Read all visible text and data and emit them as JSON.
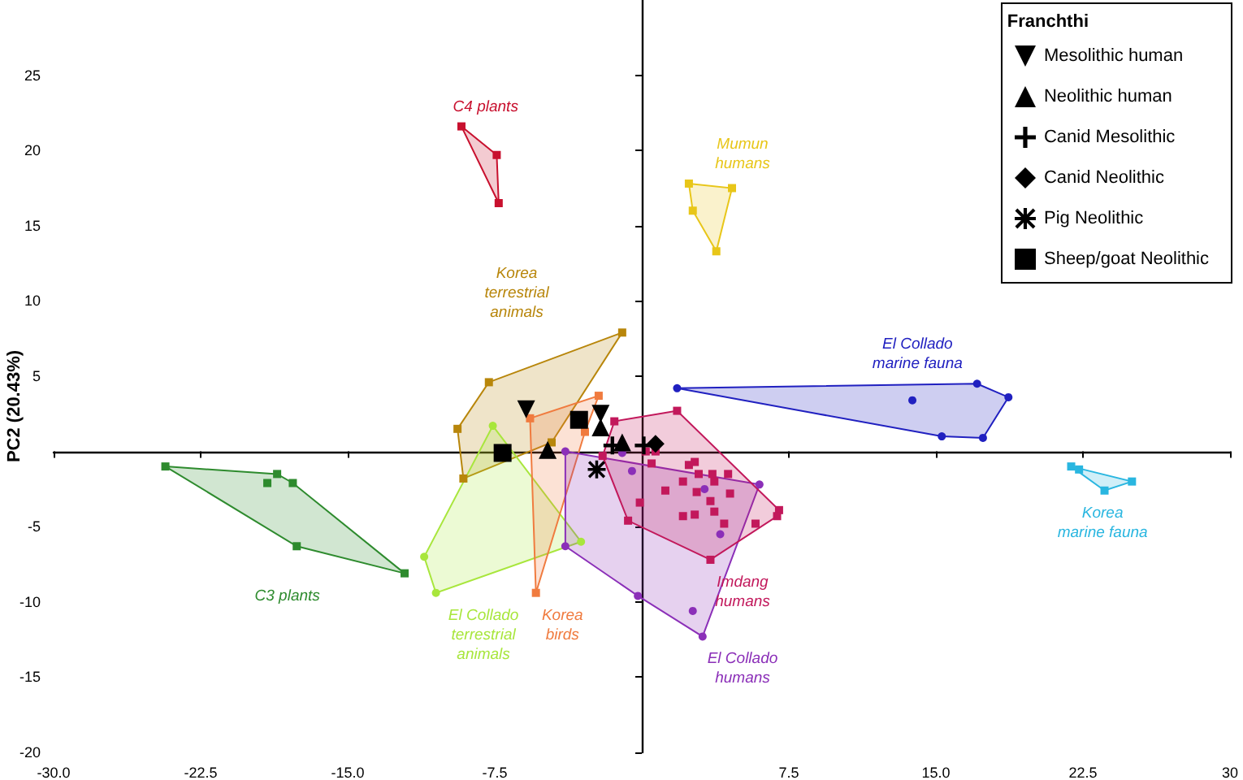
{
  "chart_data": {
    "type": "scatter",
    "ylabel": "PC2 (20.43%)",
    "legend_title": "Franchthi",
    "legend": "top right",
    "xlim": [
      -30,
      30
    ],
    "ylim": [
      -20,
      30
    ],
    "xticks": [
      {
        "value": -30,
        "label": "-30.0"
      },
      {
        "value": -22.5,
        "label": "-22.5"
      },
      {
        "value": -15,
        "label": "-15.0"
      },
      {
        "value": -7.5,
        "label": "-7.5"
      },
      7.5,
      {
        "value": 15,
        "label": "15.0"
      },
      22.5,
      30
    ],
    "yticks": [
      -20,
      -15,
      -10,
      -5,
      5,
      10,
      15,
      20,
      25
    ],
    "series": [
      {
        "type": "area",
        "name": "C4 plants",
        "color": "#c8102e",
        "marker": "square",
        "x": [
          -9.2,
          -7.4,
          -7.3
        ],
        "values": [
          21.6,
          19.7,
          16.5
        ]
      },
      {
        "type": "area",
        "name": "Mumun\nhumans",
        "color": "#e8c619",
        "marker": "square",
        "x": [
          2.4,
          4.6,
          3.8,
          2.6
        ],
        "values": [
          17.8,
          17.5,
          13.3,
          16.0
        ]
      },
      {
        "type": "area",
        "name": "Korea\nterrestrial\nanimals",
        "color": "#b8860b",
        "marker": "square",
        "x": [
          -7.8,
          -1.0,
          -4.6,
          -9.1,
          -9.4
        ],
        "values": [
          4.6,
          7.9,
          0.6,
          -1.8,
          1.5
        ]
      },
      {
        "type": "area",
        "name": "C3 plants",
        "color": "#2e8b2e",
        "marker": "square",
        "x": [
          -24.3,
          -18.6,
          -17.8,
          -12.1,
          -17.6
        ],
        "values": [
          -1.0,
          -1.5,
          -2.1,
          -8.1,
          -6.3
        ]
      },
      {
        "type": "scatter",
        "color": "#2e8b2e",
        "marker": "square",
        "x": [
          -19.1
        ],
        "values": [
          -2.1
        ]
      },
      {
        "type": "area",
        "name": "El Collado\nterrestrial\nanimals",
        "color": "#a8e63c",
        "marker": "circle",
        "x": [
          -7.6,
          -3.1,
          -10.5,
          -11.1
        ],
        "values": [
          1.7,
          -6.0,
          -9.4,
          -7.0
        ]
      },
      {
        "type": "area",
        "name": "Korea\nbirds",
        "color": "#f07b3f",
        "marker": "square",
        "x": [
          -5.7,
          -2.2,
          -2.9,
          -5.4
        ],
        "values": [
          2.2,
          3.7,
          1.3,
          -9.4
        ]
      },
      {
        "type": "area",
        "name": "El Collado\nhumans",
        "color": "#8b2fb8",
        "marker": "circle",
        "x": [
          -3.9,
          6.0,
          3.1,
          -0.2,
          -3.9
        ],
        "values": [
          0.0,
          -2.2,
          -12.3,
          -9.6,
          -6.3
        ]
      },
      {
        "type": "scatter",
        "color": "#8b2fb8",
        "marker": "circle",
        "x": [
          2.6,
          -0.5,
          -1.0,
          3.2,
          4.0
        ],
        "values": [
          -10.6,
          -1.3,
          -0.1,
          -2.5,
          -5.5
        ]
      },
      {
        "type": "area",
        "name": "Imdang\nhumans",
        "color": "#c2185b",
        "marker": "square",
        "x": [
          -1.4,
          1.8,
          7.0,
          6.9,
          3.5,
          -0.7,
          -2.0
        ],
        "values": [
          2.0,
          2.7,
          -3.9,
          -4.3,
          -7.2,
          -4.6,
          -0.3
        ]
      },
      {
        "type": "scatter",
        "color": "#c2185b",
        "marker": "square",
        "x": [
          0.2,
          0.7,
          0.5,
          -0.1,
          2.4,
          2.7,
          2.9,
          3.6,
          4.4,
          2.1,
          3.7,
          1.2,
          2.8,
          4.5,
          3.5,
          3.7,
          2.1,
          2.7,
          4.2,
          5.8
        ],
        "values": [
          0.0,
          0.0,
          -0.8,
          -3.4,
          -0.9,
          -0.7,
          -1.5,
          -1.5,
          -1.5,
          -2.0,
          -2.0,
          -2.6,
          -2.7,
          -2.8,
          -3.3,
          -4.0,
          -4.3,
          -4.2,
          -4.8,
          -4.8
        ]
      },
      {
        "type": "area",
        "name": "El Collado\nmarine fauna",
        "color": "#2020c0",
        "marker": "circle",
        "x": [
          1.8,
          17.1,
          18.7,
          17.4,
          15.3
        ],
        "values": [
          4.2,
          4.5,
          3.6,
          0.9,
          1.0
        ]
      },
      {
        "type": "scatter",
        "color": "#2020c0",
        "marker": "circle",
        "x": [
          13.8
        ],
        "values": [
          3.4
        ]
      },
      {
        "type": "area",
        "name": "Korea\nmarine fauna",
        "color": "#29b6e0",
        "marker": "square",
        "x": [
          21.9,
          25.0,
          23.6
        ],
        "values": [
          -1.0,
          -2.0,
          -2.6
        ]
      },
      {
        "type": "scatter",
        "color": "#29b6e0",
        "marker": "square",
        "x": [
          22.3
        ],
        "values": [
          -1.2
        ]
      },
      {
        "name": "Mesolithic human",
        "color": "#000000",
        "marker": "triangle-down",
        "x": [
          -5.9,
          -2.1
        ],
        "values": [
          2.8,
          2.5
        ]
      },
      {
        "name": "Neolithic human",
        "color": "#000000",
        "marker": "triangle",
        "x": [
          -2.1,
          -4.8,
          -1.0
        ],
        "values": [
          1.6,
          0.1,
          0.6
        ]
      },
      {
        "name": "Canid Mesolithic",
        "color": "#000000",
        "marker": "cross",
        "x": [
          -1.5,
          0.1
        ],
        "values": [
          0.4,
          0.4
        ]
      },
      {
        "name": "Canid Neolithic",
        "color": "#000000",
        "marker": "diamond",
        "x": [
          0.7
        ],
        "values": [
          0.5
        ]
      },
      {
        "name": "Pig Neolithic",
        "color": "#000000",
        "marker": "star",
        "x": [
          -2.3
        ],
        "values": [
          -1.2
        ]
      },
      {
        "name": "Sheep/goat Neolithic",
        "color": "#000000",
        "marker": "square",
        "x": [
          -7.1,
          -3.2
        ],
        "values": [
          -0.1,
          2.1
        ]
      }
    ]
  }
}
